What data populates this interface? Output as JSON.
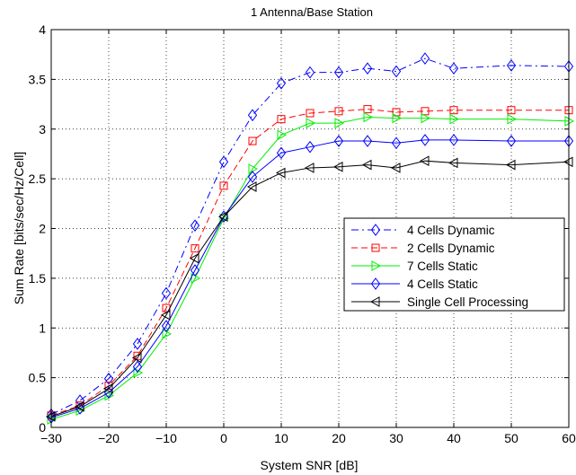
{
  "chart_data": {
    "type": "line",
    "title": "1 Antenna/Base Station",
    "xlabel": "System SNR [dB]",
    "ylabel": "Sum Rate [bits/sec/Hz/Cell]",
    "xlim": [
      -30,
      60
    ],
    "ylim": [
      0,
      4
    ],
    "xticks": [
      -30,
      -20,
      -10,
      0,
      10,
      20,
      30,
      40,
      50,
      60
    ],
    "yticks": [
      0,
      0.5,
      1,
      1.5,
      2,
      2.5,
      3,
      3.5,
      4
    ],
    "xtick_labels": [
      "−30",
      "−20",
      "−10",
      "0",
      "10",
      "20",
      "30",
      "40",
      "50",
      "60"
    ],
    "ytick_labels": [
      "0",
      "0.5",
      "1",
      "1.5",
      "2",
      "2.5",
      "3",
      "3.5",
      "4"
    ],
    "grid": true,
    "legend_position": "center-right",
    "x": [
      -30,
      -25,
      -20,
      -15,
      -10,
      -5,
      0,
      5,
      10,
      15,
      20,
      25,
      30,
      35,
      40,
      50,
      60
    ],
    "series": [
      {
        "name": "4 Cells Dynamic",
        "color": "#0000ff",
        "line_style": "dash-dot",
        "marker": "diamond",
        "values": [
          0.13,
          0.27,
          0.49,
          0.84,
          1.35,
          2.03,
          2.67,
          3.14,
          3.46,
          3.57,
          3.57,
          3.61,
          3.58,
          3.71,
          3.61,
          3.64,
          3.63
        ]
      },
      {
        "name": "2 Cells Dynamic",
        "color": "#ff0000",
        "line_style": "dashed",
        "marker": "square",
        "values": [
          0.12,
          0.22,
          0.42,
          0.72,
          1.2,
          1.8,
          2.43,
          2.88,
          3.1,
          3.16,
          3.18,
          3.2,
          3.17,
          3.18,
          3.19,
          3.19,
          3.19
        ]
      },
      {
        "name": "7 Cells Static",
        "color": "#00ee00",
        "line_style": "solid",
        "marker": "triangle-right",
        "values": [
          0.08,
          0.17,
          0.32,
          0.55,
          0.94,
          1.5,
          2.1,
          2.6,
          2.94,
          3.06,
          3.06,
          3.12,
          3.11,
          3.11,
          3.1,
          3.1,
          3.08
        ]
      },
      {
        "name": "4 Cells Static",
        "color": "#0000ff",
        "line_style": "solid",
        "marker": "diamond",
        "values": [
          0.1,
          0.19,
          0.35,
          0.61,
          1.02,
          1.58,
          2.12,
          2.52,
          2.76,
          2.82,
          2.88,
          2.88,
          2.86,
          2.89,
          2.89,
          2.88,
          2.88
        ]
      },
      {
        "name": "Single Cell Processing",
        "color": "#000000",
        "line_style": "solid",
        "marker": "triangle-left",
        "values": [
          0.11,
          0.21,
          0.39,
          0.7,
          1.13,
          1.7,
          2.12,
          2.42,
          2.56,
          2.61,
          2.62,
          2.64,
          2.61,
          2.68,
          2.66,
          2.64,
          2.67
        ]
      }
    ]
  }
}
